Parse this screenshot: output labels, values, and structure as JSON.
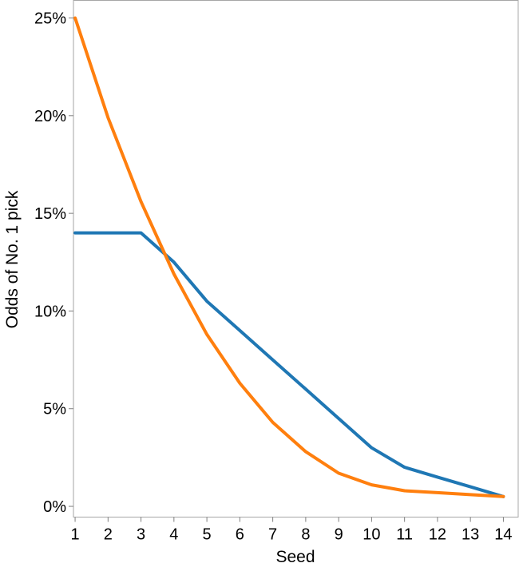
{
  "chart_data": {
    "type": "line",
    "title": "",
    "xlabel": "Seed",
    "ylabel": "Odds of No. 1 pick",
    "x": [
      1,
      2,
      3,
      4,
      5,
      6,
      7,
      8,
      9,
      10,
      11,
      12,
      13,
      14
    ],
    "x_tick_labels": [
      "1",
      "2",
      "3",
      "4",
      "5",
      "6",
      "7",
      "8",
      "9",
      "10",
      "11",
      "12",
      "13",
      "14"
    ],
    "y_ticks": [
      0,
      5,
      10,
      15,
      20,
      25
    ],
    "y_tick_labels": [
      "0%",
      "5%",
      "10%",
      "15%",
      "20%",
      "25%"
    ],
    "xlim": [
      0.95,
      14.45
    ],
    "ylim": [
      -0.55,
      25.9
    ],
    "grid": false,
    "legend": "none",
    "series": [
      {
        "color": "#1f77b4",
        "values": [
          14.0,
          14.0,
          14.0,
          12.5,
          10.5,
          9.0,
          7.5,
          6.0,
          4.5,
          3.0,
          2.0,
          1.5,
          1.0,
          0.5
        ]
      },
      {
        "color": "#ff7f0e",
        "values": [
          25.0,
          19.9,
          15.6,
          11.9,
          8.8,
          6.3,
          4.3,
          2.8,
          1.7,
          1.1,
          0.8,
          0.7,
          0.6,
          0.5
        ]
      }
    ]
  }
}
